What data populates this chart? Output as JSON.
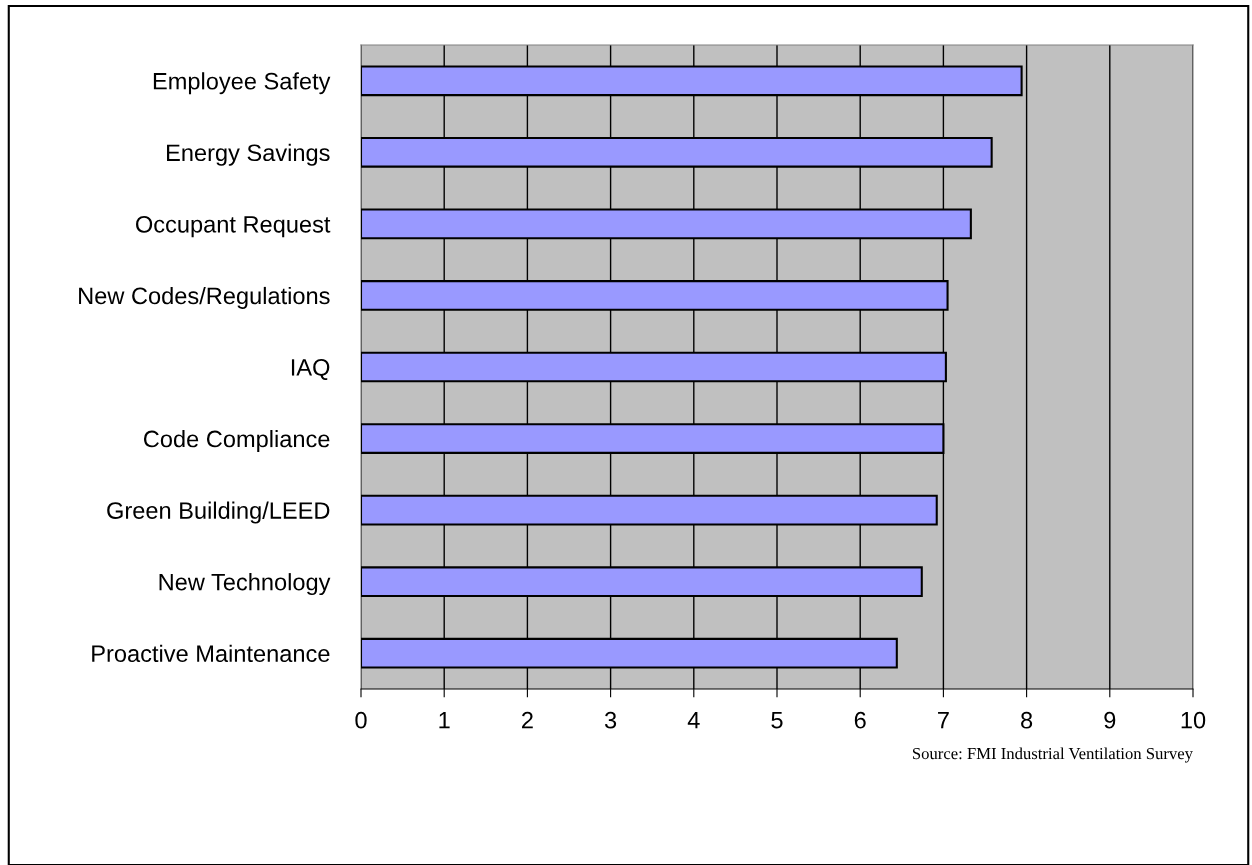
{
  "chart_data": {
    "type": "bar",
    "orientation": "horizontal",
    "categories": [
      "Employee Safety",
      "Energy Savings",
      "Occupant Request",
      "New Codes/Regulations",
      "IAQ",
      "Code Compliance",
      "Green Building/LEED",
      "New Technology",
      "Proactive Maintenance"
    ],
    "values": [
      7.94,
      7.58,
      7.33,
      7.05,
      7.03,
      7.0,
      6.92,
      6.74,
      6.44
    ],
    "color": "#9999ff",
    "xlim": [
      0,
      10
    ],
    "xticks": [
      0,
      1,
      2,
      3,
      4,
      5,
      6,
      7,
      8,
      9,
      10
    ],
    "grid": "x",
    "annotations": [
      "Source: FMI Industrial Ventilation Survey"
    ]
  }
}
